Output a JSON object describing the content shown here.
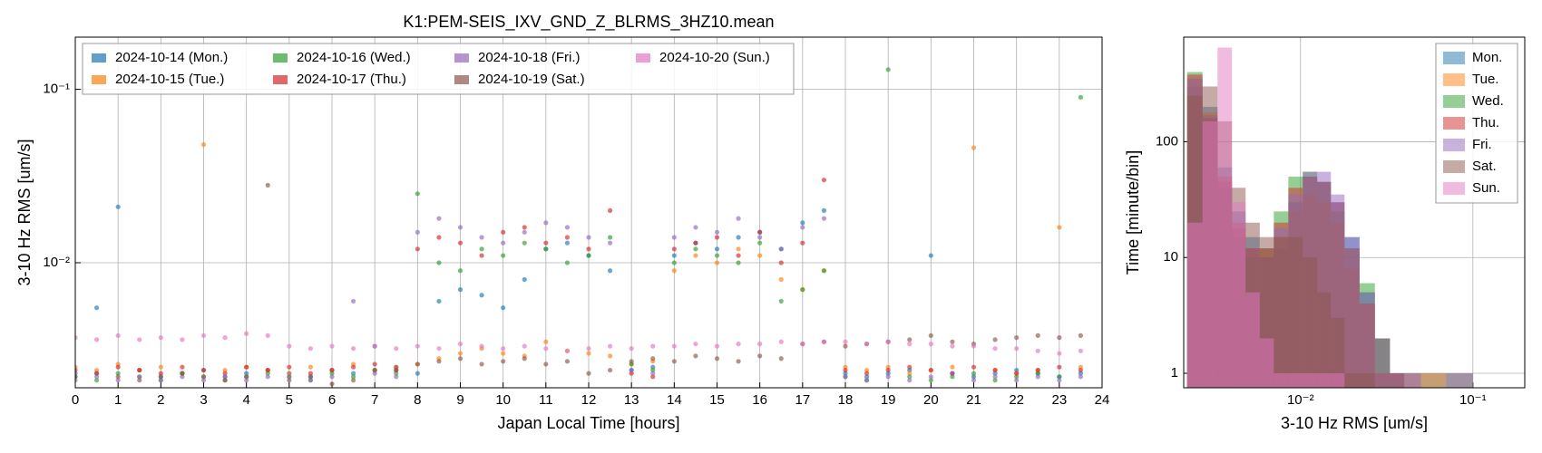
{
  "chart_data": [
    {
      "type": "scatter",
      "title": "K1:PEM-SEIS_IXV_GND_Z_BLRMS_3HZ10.mean",
      "x_label": "Japan Local Time [hours]",
      "y_label": "3-10 Hz RMS [um/s]",
      "log_y": true,
      "grid": true,
      "legend": "upper left",
      "legend_columns": 4,
      "xlim": [
        0,
        24
      ],
      "xticks": [
        0,
        1,
        2,
        3,
        4,
        5,
        6,
        7,
        8,
        9,
        10,
        11,
        12,
        13,
        14,
        15,
        16,
        17,
        18,
        19,
        20,
        21,
        22,
        23,
        24
      ],
      "ylim": [
        0.0019,
        0.2
      ],
      "yticks": [
        {
          "value": 0.01,
          "label": "10⁻²"
        },
        {
          "value": 0.1,
          "label": "10⁻¹"
        }
      ],
      "x": [
        0,
        0.5,
        1,
        1.5,
        2,
        2.5,
        3,
        3.5,
        4,
        4.5,
        5,
        5.5,
        6,
        6.5,
        7,
        7.5,
        8,
        8.5,
        9,
        9.5,
        10,
        10.5,
        11,
        11.5,
        12,
        12.5,
        13,
        13.5,
        14,
        14.5,
        15,
        15.5,
        16,
        16.5,
        17,
        17.5,
        18,
        18.5,
        19,
        19.5,
        20,
        20.5,
        21,
        21.5,
        22,
        22.5,
        23,
        23.5
      ],
      "series": [
        {
          "name": "2024-10-14 (Mon.)",
          "color": "#1f77b4",
          "values": [
            0.0023,
            0.0055,
            0.021,
            0.0024,
            0.0022,
            0.0023,
            0.0024,
            0.0022,
            0.0023,
            0.0024,
            0.0023,
            0.0022,
            0.0024,
            0.0023,
            0.0033,
            0.0024,
            0.0023,
            0.006,
            0.007,
            0.0065,
            0.0055,
            0.008,
            0.012,
            0.013,
            0.011,
            0.009,
            0.0024,
            0.0025,
            0.011,
            0.013,
            0.012,
            0.014,
            0.015,
            0.012,
            0.017,
            0.02,
            0.0023,
            0.0022,
            0.0023,
            0.0024,
            0.011,
            0.0023,
            0.0022,
            0.0023,
            0.0024,
            0.0023,
            0.0022,
            0.0023
          ]
        },
        {
          "name": "2024-10-15 (Tue.)",
          "color": "#ff7f0e",
          "values": [
            0.0025,
            0.0024,
            0.0026,
            0.0024,
            0.0025,
            0.0023,
            0.048,
            0.0024,
            0.0025,
            0.0024,
            0.0023,
            0.0025,
            0.0024,
            0.0026,
            0.0024,
            0.0025,
            0.0026,
            0.0028,
            0.003,
            0.0032,
            0.003,
            0.0029,
            0.0035,
            0.0031,
            0.003,
            0.0029,
            0.0026,
            0.0027,
            0.009,
            0.011,
            0.01,
            0.012,
            0.011,
            0.008,
            0.007,
            0.009,
            0.0025,
            0.0024,
            0.0025,
            0.0023,
            0.0024,
            0.0025,
            0.046,
            0.0024,
            0.0023,
            0.0024,
            0.016,
            0.0025
          ]
        },
        {
          "name": "2024-10-16 (Wed.)",
          "color": "#2ca02c",
          "values": [
            0.0022,
            0.0021,
            0.0023,
            0.0022,
            0.0021,
            0.0023,
            0.0022,
            0.0021,
            0.0022,
            0.0023,
            0.0022,
            0.0021,
            0.0023,
            0.0022,
            0.0024,
            0.0023,
            0.025,
            0.01,
            0.009,
            0.012,
            0.011,
            0.013,
            0.012,
            0.01,
            0.011,
            0.014,
            0.0026,
            0.0024,
            0.01,
            0.012,
            0.011,
            0.01,
            0.013,
            0.006,
            0.007,
            0.009,
            0.0022,
            0.0021,
            0.13,
            0.0022,
            0.0021,
            0.0022,
            0.0023,
            0.0021,
            0.0022,
            0.0023,
            0.0022,
            0.09
          ]
        },
        {
          "name": "2024-10-17 (Thu.)",
          "color": "#d62728",
          "values": [
            0.0024,
            0.0023,
            0.0025,
            0.0024,
            0.0023,
            0.0025,
            0.0024,
            0.0023,
            0.0025,
            0.0024,
            0.0025,
            0.0023,
            0.0024,
            0.0025,
            0.0026,
            0.0024,
            0.012,
            0.014,
            0.013,
            0.011,
            0.015,
            0.016,
            0.013,
            0.014,
            0.012,
            0.02,
            0.0023,
            0.0022,
            0.012,
            0.013,
            0.014,
            0.011,
            0.015,
            0.01,
            0.013,
            0.03,
            0.0024,
            0.0023,
            0.0024,
            0.0025,
            0.0024,
            0.0023,
            0.0025,
            0.0024,
            0.0023,
            0.0024,
            0.0025,
            0.0024
          ]
        },
        {
          "name": "2024-10-18 (Fri.)",
          "color": "#9467bd",
          "values": [
            0.0021,
            0.0022,
            0.0021,
            0.0022,
            0.0021,
            0.0022,
            0.0021,
            0.0022,
            0.0021,
            0.0022,
            0.0022,
            0.0021,
            0.0022,
            0.006,
            0.0023,
            0.0022,
            0.015,
            0.018,
            0.016,
            0.014,
            0.013,
            0.015,
            0.017,
            0.016,
            0.014,
            0.013,
            0.0024,
            0.0023,
            0.014,
            0.016,
            0.015,
            0.018,
            0.014,
            0.012,
            0.016,
            0.018,
            0.0022,
            0.0021,
            0.0022,
            0.0021,
            0.0022,
            0.0023,
            0.0021,
            0.0022,
            0.0021,
            0.0022,
            0.0021,
            0.0022
          ]
        },
        {
          "name": "2024-10-19 (Sat.)",
          "color": "#8c564b",
          "values": [
            0.0022,
            0.0023,
            0.0022,
            0.0021,
            0.0022,
            0.0023,
            0.0022,
            0.0021,
            0.0022,
            0.028,
            0.0021,
            0.0022,
            0.002,
            0.0021,
            0.0024,
            0.0025,
            0.0026,
            0.0027,
            0.0028,
            0.0026,
            0.0027,
            0.0028,
            0.0026,
            0.0027,
            0.0023,
            0.0024,
            0.0027,
            0.0028,
            0.0027,
            0.0029,
            0.0028,
            0.0027,
            0.0029,
            0.0028,
            0.0034,
            0.0035,
            0.0033,
            0.0034,
            0.0035,
            0.0036,
            0.0038,
            0.0035,
            0.0034,
            0.0036,
            0.0037,
            0.0038,
            0.0037,
            0.0038
          ]
        },
        {
          "name": "2024-10-20 (Sun.)",
          "color": "#e377c2",
          "values": [
            0.0037,
            0.0036,
            0.0038,
            0.0036,
            0.0037,
            0.0036,
            0.0038,
            0.0037,
            0.0039,
            0.0038,
            0.0033,
            0.0032,
            0.0033,
            0.0032,
            0.0033,
            0.0032,
            0.0033,
            0.0032,
            0.0034,
            0.0033,
            0.0032,
            0.0033,
            0.0032,
            0.0031,
            0.0032,
            0.0033,
            0.0032,
            0.0033,
            0.0033,
            0.0034,
            0.0033,
            0.0034,
            0.0034,
            0.0035,
            0.0034,
            0.0035,
            0.0035,
            0.0034,
            0.0035,
            0.0034,
            0.0034,
            0.0033,
            0.0033,
            0.0032,
            0.0032,
            0.0031,
            0.003,
            0.0031
          ]
        }
      ]
    },
    {
      "type": "histogram",
      "x_label": "3-10 Hz RMS [um/s]",
      "y_label": "Time [minute/bin]",
      "log_x": true,
      "log_y": true,
      "grid": true,
      "legend": "upper right",
      "xlim": [
        0.0021,
        0.2
      ],
      "xticks": [
        {
          "value": 0.01,
          "label": "10⁻²"
        },
        {
          "value": 0.1,
          "label": "10⁻¹"
        }
      ],
      "ylim": [
        0.75,
        800
      ],
      "yticks": [
        1,
        10,
        100
      ],
      "bins": [
        0.0022,
        0.0027,
        0.0033,
        0.004,
        0.0048,
        0.0058,
        0.007,
        0.0085,
        0.0103,
        0.0125,
        0.015,
        0.018,
        0.022,
        0.027,
        0.033,
        0.04,
        0.05,
        0.07,
        0.1,
        0.14
      ],
      "series": [
        {
          "name": "Mon.",
          "color": "#1f77b4",
          "values": [
            300,
            200,
            60,
            25,
            15,
            10,
            12,
            30,
            50,
            45,
            30,
            15,
            5,
            2,
            1,
            1,
            1,
            1,
            0
          ]
        },
        {
          "name": "Tue.",
          "color": "#ff7f0e",
          "values": [
            350,
            180,
            50,
            20,
            12,
            10,
            15,
            25,
            35,
            30,
            20,
            8,
            4,
            2,
            1,
            1,
            1,
            0,
            0
          ]
        },
        {
          "name": "Wed.",
          "color": "#2ca02c",
          "values": [
            400,
            150,
            40,
            15,
            10,
            12,
            25,
            50,
            55,
            45,
            25,
            12,
            6,
            2,
            1,
            0,
            0,
            1,
            0
          ]
        },
        {
          "name": "Thu.",
          "color": "#d62728",
          "values": [
            380,
            160,
            45,
            18,
            12,
            12,
            20,
            40,
            50,
            45,
            30,
            12,
            4,
            1,
            1,
            0,
            0,
            0,
            0
          ]
        },
        {
          "name": "Fri.",
          "color": "#9467bd",
          "values": [
            350,
            170,
            50,
            20,
            12,
            10,
            18,
            35,
            55,
            55,
            35,
            15,
            5,
            2,
            1,
            1,
            0,
            0,
            0
          ]
        },
        {
          "name": "Sat.",
          "color": "#8c564b",
          "values": [
            250,
            300,
            150,
            40,
            20,
            15,
            15,
            15,
            10,
            5,
            3,
            1,
            1,
            0,
            0,
            0,
            0,
            0,
            0
          ]
        },
        {
          "name": "Sun.",
          "color": "#e377c2",
          "values": [
            20,
            150,
            650,
            30,
            5,
            2,
            1,
            1,
            1,
            1,
            1,
            0,
            0,
            0,
            0,
            0,
            0,
            1,
            0
          ]
        }
      ]
    }
  ]
}
